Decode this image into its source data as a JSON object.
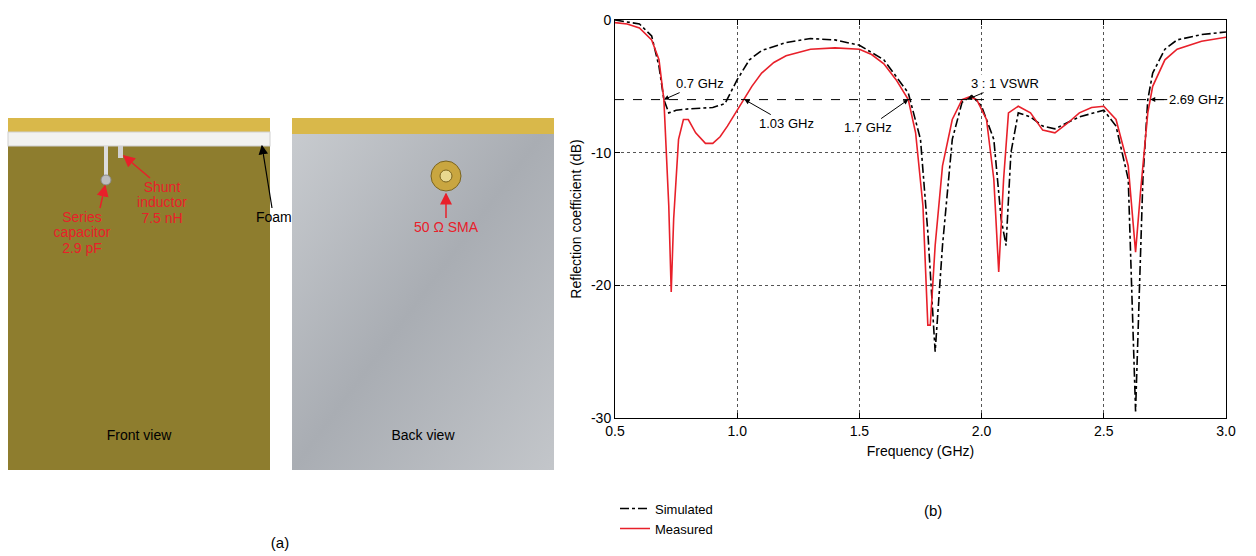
{
  "photos": {
    "panel_label": "(a)",
    "front": {
      "caption": "Front view",
      "labels": [
        {
          "lines": [
            "Series",
            "capacitor",
            "2.9 pF"
          ]
        },
        {
          "lines": [
            "Shunt",
            "inductor",
            "7.5 nH"
          ]
        },
        {
          "lines": [
            "Foam"
          ]
        }
      ]
    },
    "back": {
      "caption": "Back view",
      "labels": [
        {
          "lines": [
            "50 Ω SMA"
          ]
        }
      ]
    }
  },
  "chart_data": {
    "type": "line",
    "panel_label": "(b)",
    "x_label": "Frequency (GHz)",
    "y_label": "Reflection coefficient (dB)",
    "xlim": [
      0.5,
      3
    ],
    "xticks": [
      {
        "value": 0.5,
        "label": "0.5"
      },
      {
        "value": 1,
        "label": "1.0"
      },
      {
        "value": 1.5,
        "label": "1.5"
      },
      {
        "value": 2,
        "label": "2.0"
      },
      {
        "value": 2.5,
        "label": "2.5"
      },
      {
        "value": 3,
        "label": "3.0"
      }
    ],
    "ylim": [
      -30,
      0
    ],
    "yticks": [
      -30,
      -20,
      -10,
      0
    ],
    "grid": true,
    "legend": "below",
    "reference_line": {
      "value": -6,
      "line_style": "dash"
    },
    "annotations": [
      {
        "text": "0.7 GHz",
        "x": 0.7,
        "y": -6
      },
      {
        "text": "1.03 GHz",
        "x": 1.03,
        "y": -6
      },
      {
        "text": "1.7 GHz",
        "x": 1.7,
        "y": -6
      },
      {
        "text": "3 : 1 VSWR",
        "x": 1.94,
        "y": -6
      },
      {
        "text": "2.69 GHz",
        "x": 2.69,
        "y": -6
      }
    ],
    "series": [
      {
        "name": "Simulated",
        "color": "#000000",
        "line_style": "dashdot",
        "x": [
          0.5,
          0.6,
          0.65,
          0.68,
          0.7,
          0.72,
          0.75,
          0.8,
          0.9,
          0.95,
          1.0,
          1.05,
          1.1,
          1.2,
          1.3,
          1.4,
          1.5,
          1.6,
          1.7,
          1.75,
          1.78,
          1.81,
          1.84,
          1.88,
          1.92,
          1.96,
          2.0,
          2.05,
          2.08,
          2.1,
          2.12,
          2.15,
          2.2,
          2.25,
          2.3,
          2.4,
          2.5,
          2.55,
          2.6,
          2.63,
          2.66,
          2.68,
          2.7,
          2.75,
          2.8,
          2.9,
          3.0
        ],
        "values": [
          0,
          -0.3,
          -1.2,
          -3.5,
          -6,
          -7,
          -6.8,
          -6.7,
          -6.6,
          -6.3,
          -4.5,
          -3,
          -2.3,
          -1.7,
          -1.4,
          -1.5,
          -1.9,
          -3,
          -5.5,
          -9,
          -16,
          -25,
          -17,
          -9,
          -6.2,
          -5.7,
          -6.5,
          -9,
          -15,
          -17,
          -10,
          -7,
          -7.3,
          -8,
          -8.2,
          -7.3,
          -6.8,
          -8,
          -12,
          -29.5,
          -12,
          -6,
          -4,
          -2.2,
          -1.5,
          -1.1,
          -0.9
        ]
      },
      {
        "name": "Measured",
        "color": "#e8202a",
        "line_style": "solid",
        "x": [
          0.5,
          0.55,
          0.6,
          0.65,
          0.68,
          0.7,
          0.72,
          0.73,
          0.74,
          0.76,
          0.78,
          0.8,
          0.83,
          0.87,
          0.9,
          0.93,
          0.96,
          1.0,
          1.03,
          1.06,
          1.1,
          1.15,
          1.2,
          1.3,
          1.4,
          1.5,
          1.55,
          1.6,
          1.65,
          1.7,
          1.73,
          1.76,
          1.78,
          1.79,
          1.81,
          1.84,
          1.88,
          1.92,
          1.95,
          1.98,
          2.02,
          2.05,
          2.07,
          2.09,
          2.11,
          2.15,
          2.2,
          2.25,
          2.3,
          2.35,
          2.4,
          2.45,
          2.5,
          2.55,
          2.6,
          2.63,
          2.65,
          2.68,
          2.7,
          2.75,
          2.8,
          2.9,
          3.0
        ],
        "values": [
          -0.2,
          -0.3,
          -0.6,
          -1.5,
          -3,
          -6,
          -14,
          -20.5,
          -15,
          -9,
          -7.5,
          -7.5,
          -8.5,
          -9.3,
          -9.3,
          -8.8,
          -8,
          -6.8,
          -6,
          -5,
          -4,
          -3.2,
          -2.7,
          -2.2,
          -2.1,
          -2.2,
          -2.6,
          -3.3,
          -4.5,
          -6,
          -8.5,
          -14,
          -23,
          -23,
          -17,
          -11,
          -7.5,
          -6,
          -5.8,
          -6,
          -7.5,
          -12,
          -19,
          -12,
          -7,
          -6.5,
          -7,
          -8.3,
          -8.5,
          -7.8,
          -7,
          -6.6,
          -6.5,
          -7.5,
          -11,
          -17.5,
          -13,
          -7,
          -5,
          -3,
          -2.2,
          -1.6,
          -1.3
        ]
      }
    ]
  }
}
